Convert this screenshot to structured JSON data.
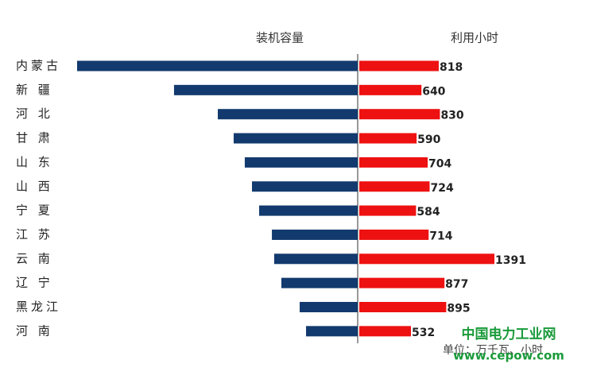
{
  "chart_data": {
    "type": "butterfly",
    "categories": [
      "内蒙古",
      "新 疆",
      "河 北",
      "甘 肃",
      "山 东",
      "山 西",
      "宁 夏",
      "江 苏",
      "云 南",
      "辽 宁",
      "黑龙江",
      "河 南"
    ],
    "series": [
      {
        "name": "装机容量",
        "color": "#123a6e",
        "values": [
          2070,
          1355,
          1032,
          915,
          833,
          780,
          727,
          633,
          616,
          563,
          428,
          381
        ]
      },
      {
        "name": "利用小时",
        "color": "#ee1111",
        "values": [
          818,
          640,
          830,
          590,
          704,
          724,
          584,
          714,
          1391,
          877,
          895,
          532
        ]
      }
    ],
    "unit_note": "单位：万千瓦、小时",
    "watermark": [
      "中国电力工业网",
      "www.cepow.com"
    ]
  }
}
